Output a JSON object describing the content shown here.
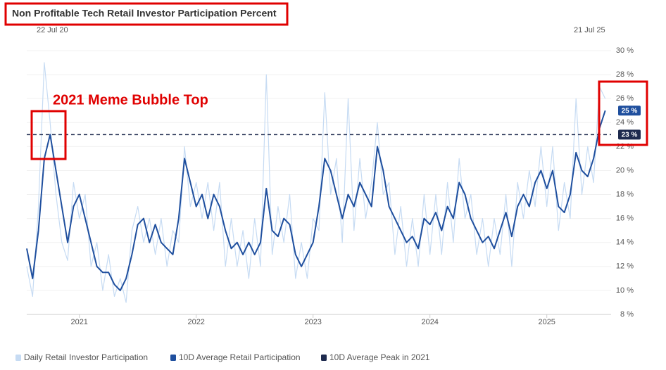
{
  "chart_data": {
    "type": "line",
    "title": "Non Profitable Tech Retail Investor Participation Percent",
    "range_start_label": "22 Jul 20",
    "range_end_label": "21 Jul 25",
    "annotation": "2021 Meme Bubble Top",
    "x": [
      2020.55,
      2020.6,
      2020.65,
      2020.7,
      2020.75,
      2020.8,
      2020.85,
      2020.9,
      2020.95,
      2021,
      2021.05,
      2021.1,
      2021.15,
      2021.2,
      2021.25,
      2021.3,
      2021.35,
      2021.4,
      2021.45,
      2021.5,
      2021.55,
      2021.6,
      2021.65,
      2021.7,
      2021.75,
      2021.8,
      2021.85,
      2021.9,
      2021.95,
      2022,
      2022.05,
      2022.1,
      2022.15,
      2022.2,
      2022.25,
      2022.3,
      2022.35,
      2022.4,
      2022.45,
      2022.5,
      2022.55,
      2022.6,
      2022.65,
      2022.7,
      2022.75,
      2022.8,
      2022.85,
      2022.9,
      2022.95,
      2023,
      2023.05,
      2023.1,
      2023.15,
      2023.2,
      2023.25,
      2023.3,
      2023.35,
      2023.4,
      2023.45,
      2023.5,
      2023.55,
      2023.6,
      2023.65,
      2023.7,
      2023.75,
      2023.8,
      2023.85,
      2023.9,
      2023.95,
      2024,
      2024.05,
      2024.1,
      2024.15,
      2024.2,
      2024.25,
      2024.3,
      2024.35,
      2024.4,
      2024.45,
      2024.5,
      2024.55,
      2024.6,
      2024.65,
      2024.7,
      2024.75,
      2024.8,
      2024.85,
      2024.9,
      2024.95,
      2025,
      2025.05,
      2025.1,
      2025.15,
      2025.2,
      2025.25,
      2025.3,
      2025.35,
      2025.4,
      2025.45,
      2025.5
    ],
    "series": [
      {
        "name": "Daily Retail Investor Participation",
        "color": "#c6dbf3",
        "values": [
          12,
          9.5,
          17,
          29,
          24,
          18,
          14,
          12.5,
          19,
          16,
          18,
          12,
          14,
          10,
          13,
          9.5,
          11,
          9,
          15,
          17,
          14,
          16,
          13,
          16,
          12,
          15,
          14,
          22,
          17,
          19,
          16,
          19,
          15,
          19,
          12,
          16,
          12,
          15,
          11,
          16,
          12,
          28,
          13,
          17,
          14,
          18,
          11,
          14,
          11,
          16,
          15,
          26.5,
          18,
          21,
          14,
          26,
          15,
          21,
          16,
          19,
          24,
          18,
          19,
          13,
          17,
          12,
          16,
          12,
          18,
          13,
          18,
          13,
          19,
          14,
          21,
          16,
          18,
          13,
          16,
          12,
          16,
          13,
          18,
          12,
          19,
          16,
          20,
          17,
          22,
          17,
          22,
          15,
          19,
          16,
          26,
          18,
          22,
          19,
          27,
          26
        ]
      },
      {
        "name": "10D Average Retail Participation",
        "color": "#1f4f9e",
        "end_label": "25 %",
        "values": [
          13.5,
          11,
          15,
          21,
          23,
          20,
          17,
          14,
          17,
          18,
          16,
          14,
          12,
          11.5,
          11.5,
          10.5,
          10,
          11,
          13,
          15.5,
          16,
          14,
          15.5,
          14,
          13.5,
          13,
          16,
          21,
          19,
          17,
          18,
          16,
          18,
          17,
          15,
          13.5,
          14,
          13,
          14,
          13,
          14,
          18.5,
          15,
          14.5,
          16,
          15.5,
          13,
          12,
          13,
          14,
          17,
          21,
          20,
          18,
          16,
          18,
          17,
          19,
          18,
          17,
          22,
          20,
          17,
          16,
          15,
          14,
          14.5,
          13.5,
          16,
          15.5,
          16.5,
          15,
          17,
          16,
          19,
          18,
          16,
          15,
          14,
          14.5,
          13.5,
          15,
          16.5,
          14.5,
          17,
          18,
          17,
          19,
          20,
          18.5,
          20,
          17,
          16.5,
          18,
          21.5,
          20,
          19.5,
          21,
          23.5,
          25
        ]
      }
    ],
    "reference_line": {
      "name": "10D Average Peak in 2021",
      "value": 23,
      "label": "23 %",
      "color": "#1e2a4e"
    },
    "xlim": [
      2020.55,
      2025.55
    ],
    "xticks": [
      2021,
      2022,
      2023,
      2024,
      2025
    ],
    "ylim": [
      8,
      30
    ],
    "yticks": [
      {
        "value": 8,
        "label": "8 %"
      },
      {
        "value": 10,
        "label": "10 %"
      },
      {
        "value": 12,
        "label": "12 %"
      },
      {
        "value": 14,
        "label": "14 %"
      },
      {
        "value": 16,
        "label": "16 %"
      },
      {
        "value": 18,
        "label": "18 %"
      },
      {
        "value": 20,
        "label": "20 %"
      },
      {
        "value": 22,
        "label": "22 %"
      },
      {
        "value": 24,
        "label": "24 %"
      },
      {
        "value": 26,
        "label": "26 %"
      },
      {
        "value": 28,
        "label": "28 %"
      },
      {
        "value": 30,
        "label": "30 %"
      }
    ],
    "grid": true
  }
}
